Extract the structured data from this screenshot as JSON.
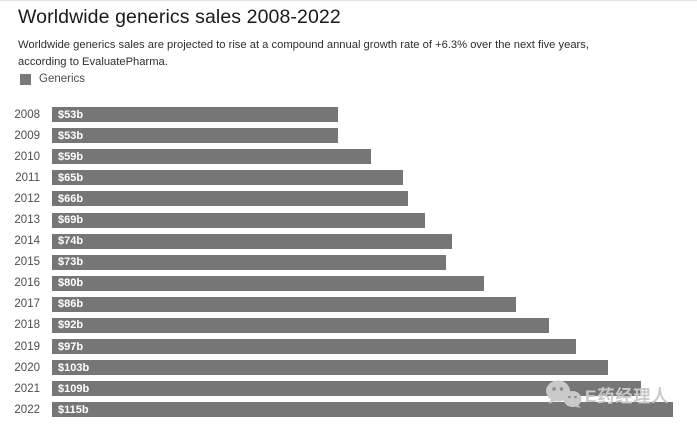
{
  "title": "Worldwide generics sales 2008-2022",
  "subtitle": "Worldwide generics sales are projected to rise at a compound annual growth rate of +6.3% over the next five years, according to EvaluatePharma.",
  "legend": {
    "label": "Generics"
  },
  "watermark": {
    "icon": "wechat-icon",
    "text": "E药经理人"
  },
  "colors": {
    "bar": "#767676",
    "bar_value_label": "#ffffff",
    "year_label": "#4d4d4d",
    "legend_swatch": "#7a7a7a",
    "title": "#1a1a1a",
    "watermark": "#c9c9c9"
  },
  "chart_data": {
    "type": "bar",
    "orientation": "horizontal",
    "title": "Worldwide generics sales 2008-2022",
    "series_name": "Generics",
    "categories": [
      "2008",
      "2009",
      "2010",
      "2011",
      "2012",
      "2013",
      "2014",
      "2015",
      "2016",
      "2017",
      "2018",
      "2019",
      "2020",
      "2021",
      "2022"
    ],
    "values": [
      53,
      53,
      59,
      65,
      66,
      69,
      74,
      73,
      80,
      86,
      92,
      97,
      103,
      109,
      115
    ],
    "value_labels": [
      "$53b",
      "$53b",
      "$59b",
      "$65b",
      "$66b",
      "$69b",
      "$74b",
      "$73b",
      "$80b",
      "$86b",
      "$92b",
      "$97b",
      "$103b",
      "$109b",
      "$115b"
    ],
    "xlim": [
      0,
      115
    ],
    "grid": false,
    "legend_position": "top-left",
    "value_label_position": "inside-start"
  }
}
